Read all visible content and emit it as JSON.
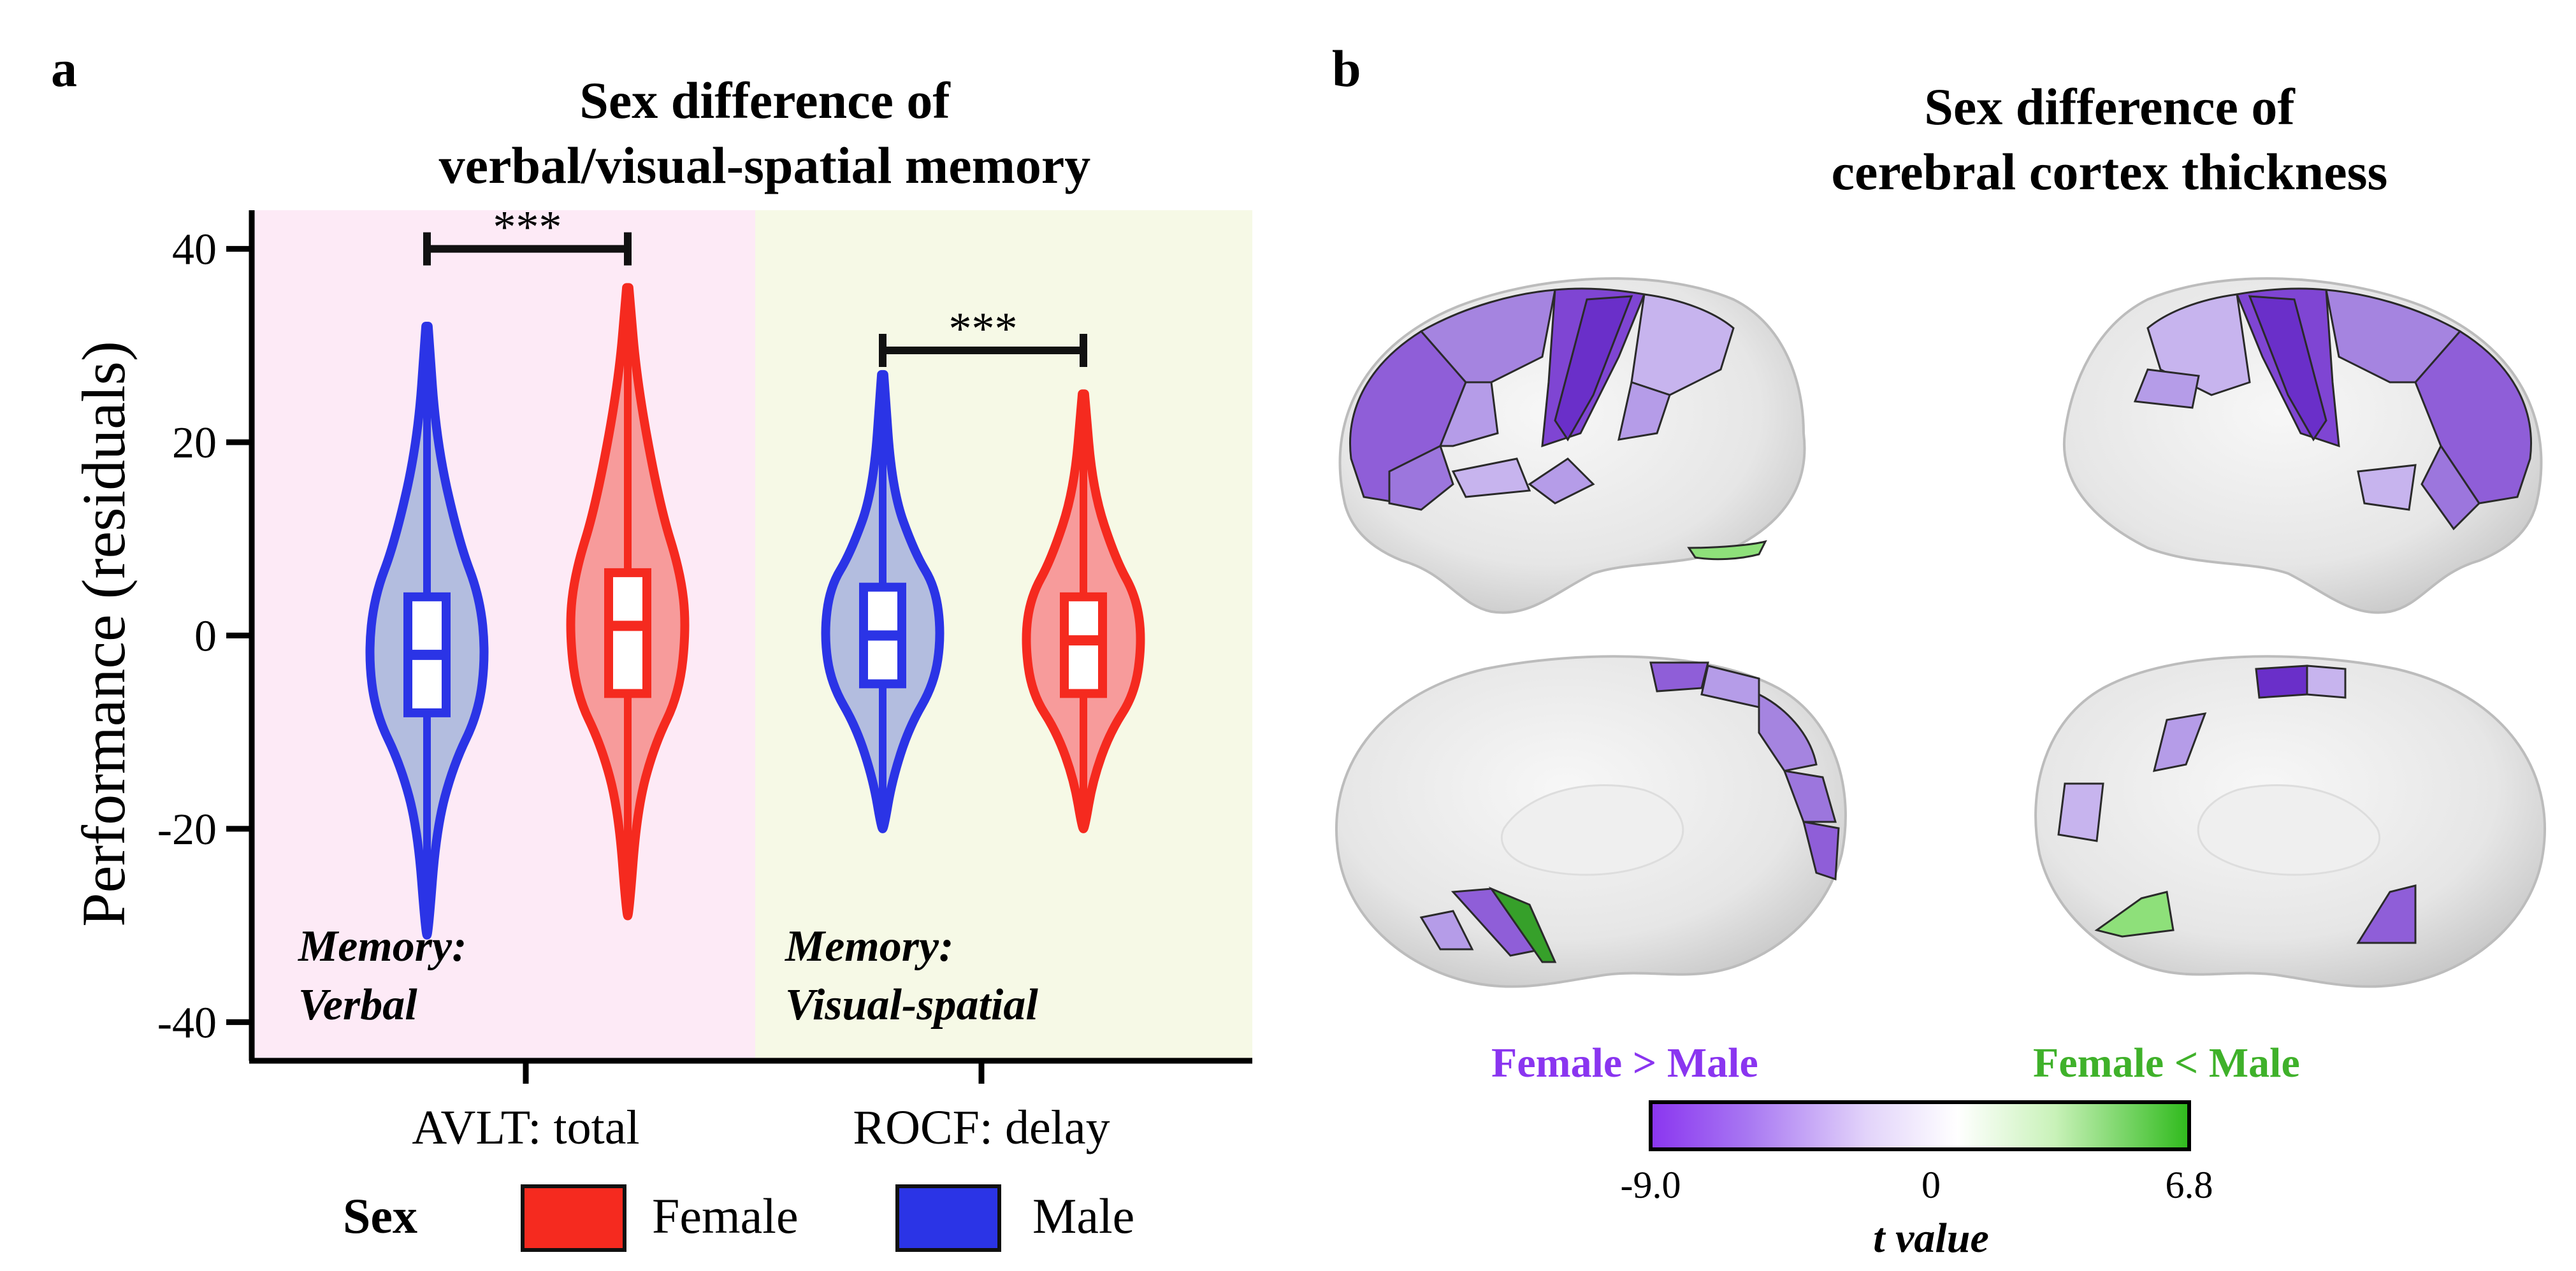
{
  "panel_a": {
    "letter": "a",
    "title_lines": [
      "Sex difference of",
      "verbal/visual-spatial memory"
    ],
    "legend": {
      "title": "Sex",
      "items": [
        "Female",
        "Male"
      ]
    }
  },
  "panel_b": {
    "letter": "b",
    "title_lines": [
      "Sex difference of",
      "cerebral cortex thickness"
    ],
    "colorbar": {
      "left_label": "Female > Male",
      "right_label": "Female < Male",
      "ticks": [
        "-9.0",
        "0",
        "6.8"
      ],
      "min": -9.0,
      "max": 6.8,
      "title": "t value",
      "colors": {
        "negative": "#8a35f0",
        "neutral": "#ffffff",
        "positive": "#2fba1c"
      }
    },
    "views": [
      "lateral-left",
      "lateral-right",
      "medial-left",
      "medial-right"
    ]
  },
  "chart_data": {
    "type": "violin",
    "title": "Sex difference of verbal/visual-spatial memory",
    "ylabel": "Performance (residuals)",
    "ylim": [
      -44,
      44
    ],
    "yticks": [
      -40,
      -20,
      0,
      20,
      40
    ],
    "grid": false,
    "legend_position": "bottom",
    "categories": [
      "AVLT: total",
      "ROCF: delay"
    ],
    "category_annotations": [
      [
        "Memory:",
        "Verbal"
      ],
      [
        "Memory:",
        "Visual-spatial"
      ]
    ],
    "background_colors": [
      "#fdeaf6",
      "#f6f9e6"
    ],
    "significance": [
      "***",
      "***"
    ],
    "series": [
      {
        "name": "Male",
        "color": "#2b34e6",
        "fill": "#b3bddf",
        "groups": [
          {
            "q1": -8,
            "median": -2,
            "q3": 4,
            "whisker_low": -20,
            "whisker_high": 20,
            "min": -31,
            "max": 32
          },
          {
            "q1": -5,
            "median": 0,
            "q3": 5,
            "whisker_low": -15,
            "whisker_high": 15,
            "min": -20,
            "max": 27
          }
        ]
      },
      {
        "name": "Female",
        "color": "#f52a1f",
        "fill": "#f79b9b",
        "groups": [
          {
            "q1": -6,
            "median": 1,
            "q3": 6.5,
            "whisker_low": -18,
            "whisker_high": 26,
            "min": -29,
            "max": 36
          },
          {
            "q1": -6,
            "median": -0.5,
            "q3": 4,
            "whisker_low": -15,
            "whisker_high": 15,
            "min": -20,
            "max": 25
          }
        ]
      }
    ]
  }
}
